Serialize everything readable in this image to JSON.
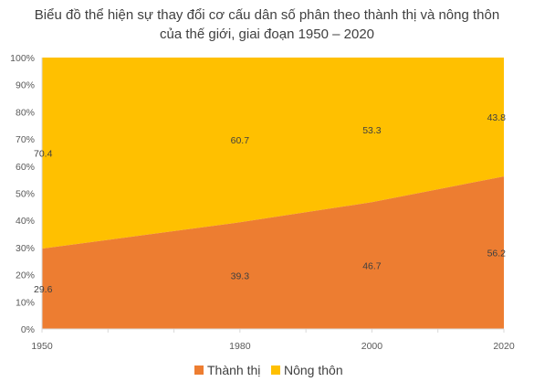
{
  "chart_data": {
    "type": "area",
    "title_line1": "Biểu đồ thể hiện sự thay đổi cơ cấu dân số phân theo thành thị và nông thôn",
    "title_line2": "của thế giới, giai đoạn 1950 – 2020",
    "x": [
      1950,
      1980,
      2000,
      2020
    ],
    "x_tick_labels": [
      "1950",
      "1980",
      "2000",
      "2020"
    ],
    "xlim": [
      1950,
      2020
    ],
    "ylim": [
      0,
      100
    ],
    "y_ticks": [
      0,
      10,
      20,
      30,
      40,
      50,
      60,
      70,
      80,
      90,
      100
    ],
    "y_tick_labels": [
      "0%",
      "10%",
      "20%",
      "30%",
      "40%",
      "50%",
      "60%",
      "70%",
      "80%",
      "90%",
      "100%"
    ],
    "stacked": "percent",
    "grid": false,
    "legend_position": "bottom",
    "series": [
      {
        "name": "Thành thị",
        "color": "#ED7D31",
        "values": [
          29.6,
          39.3,
          46.7,
          56.2
        ],
        "labels": [
          "29.6",
          "39.3",
          "46.7",
          "56.2"
        ]
      },
      {
        "name": "Nông thôn",
        "color": "#FFC000",
        "values": [
          70.4,
          60.7,
          53.3,
          43.8
        ],
        "labels": [
          "70.4",
          "60.7",
          "53.3",
          "43.8"
        ]
      }
    ]
  }
}
